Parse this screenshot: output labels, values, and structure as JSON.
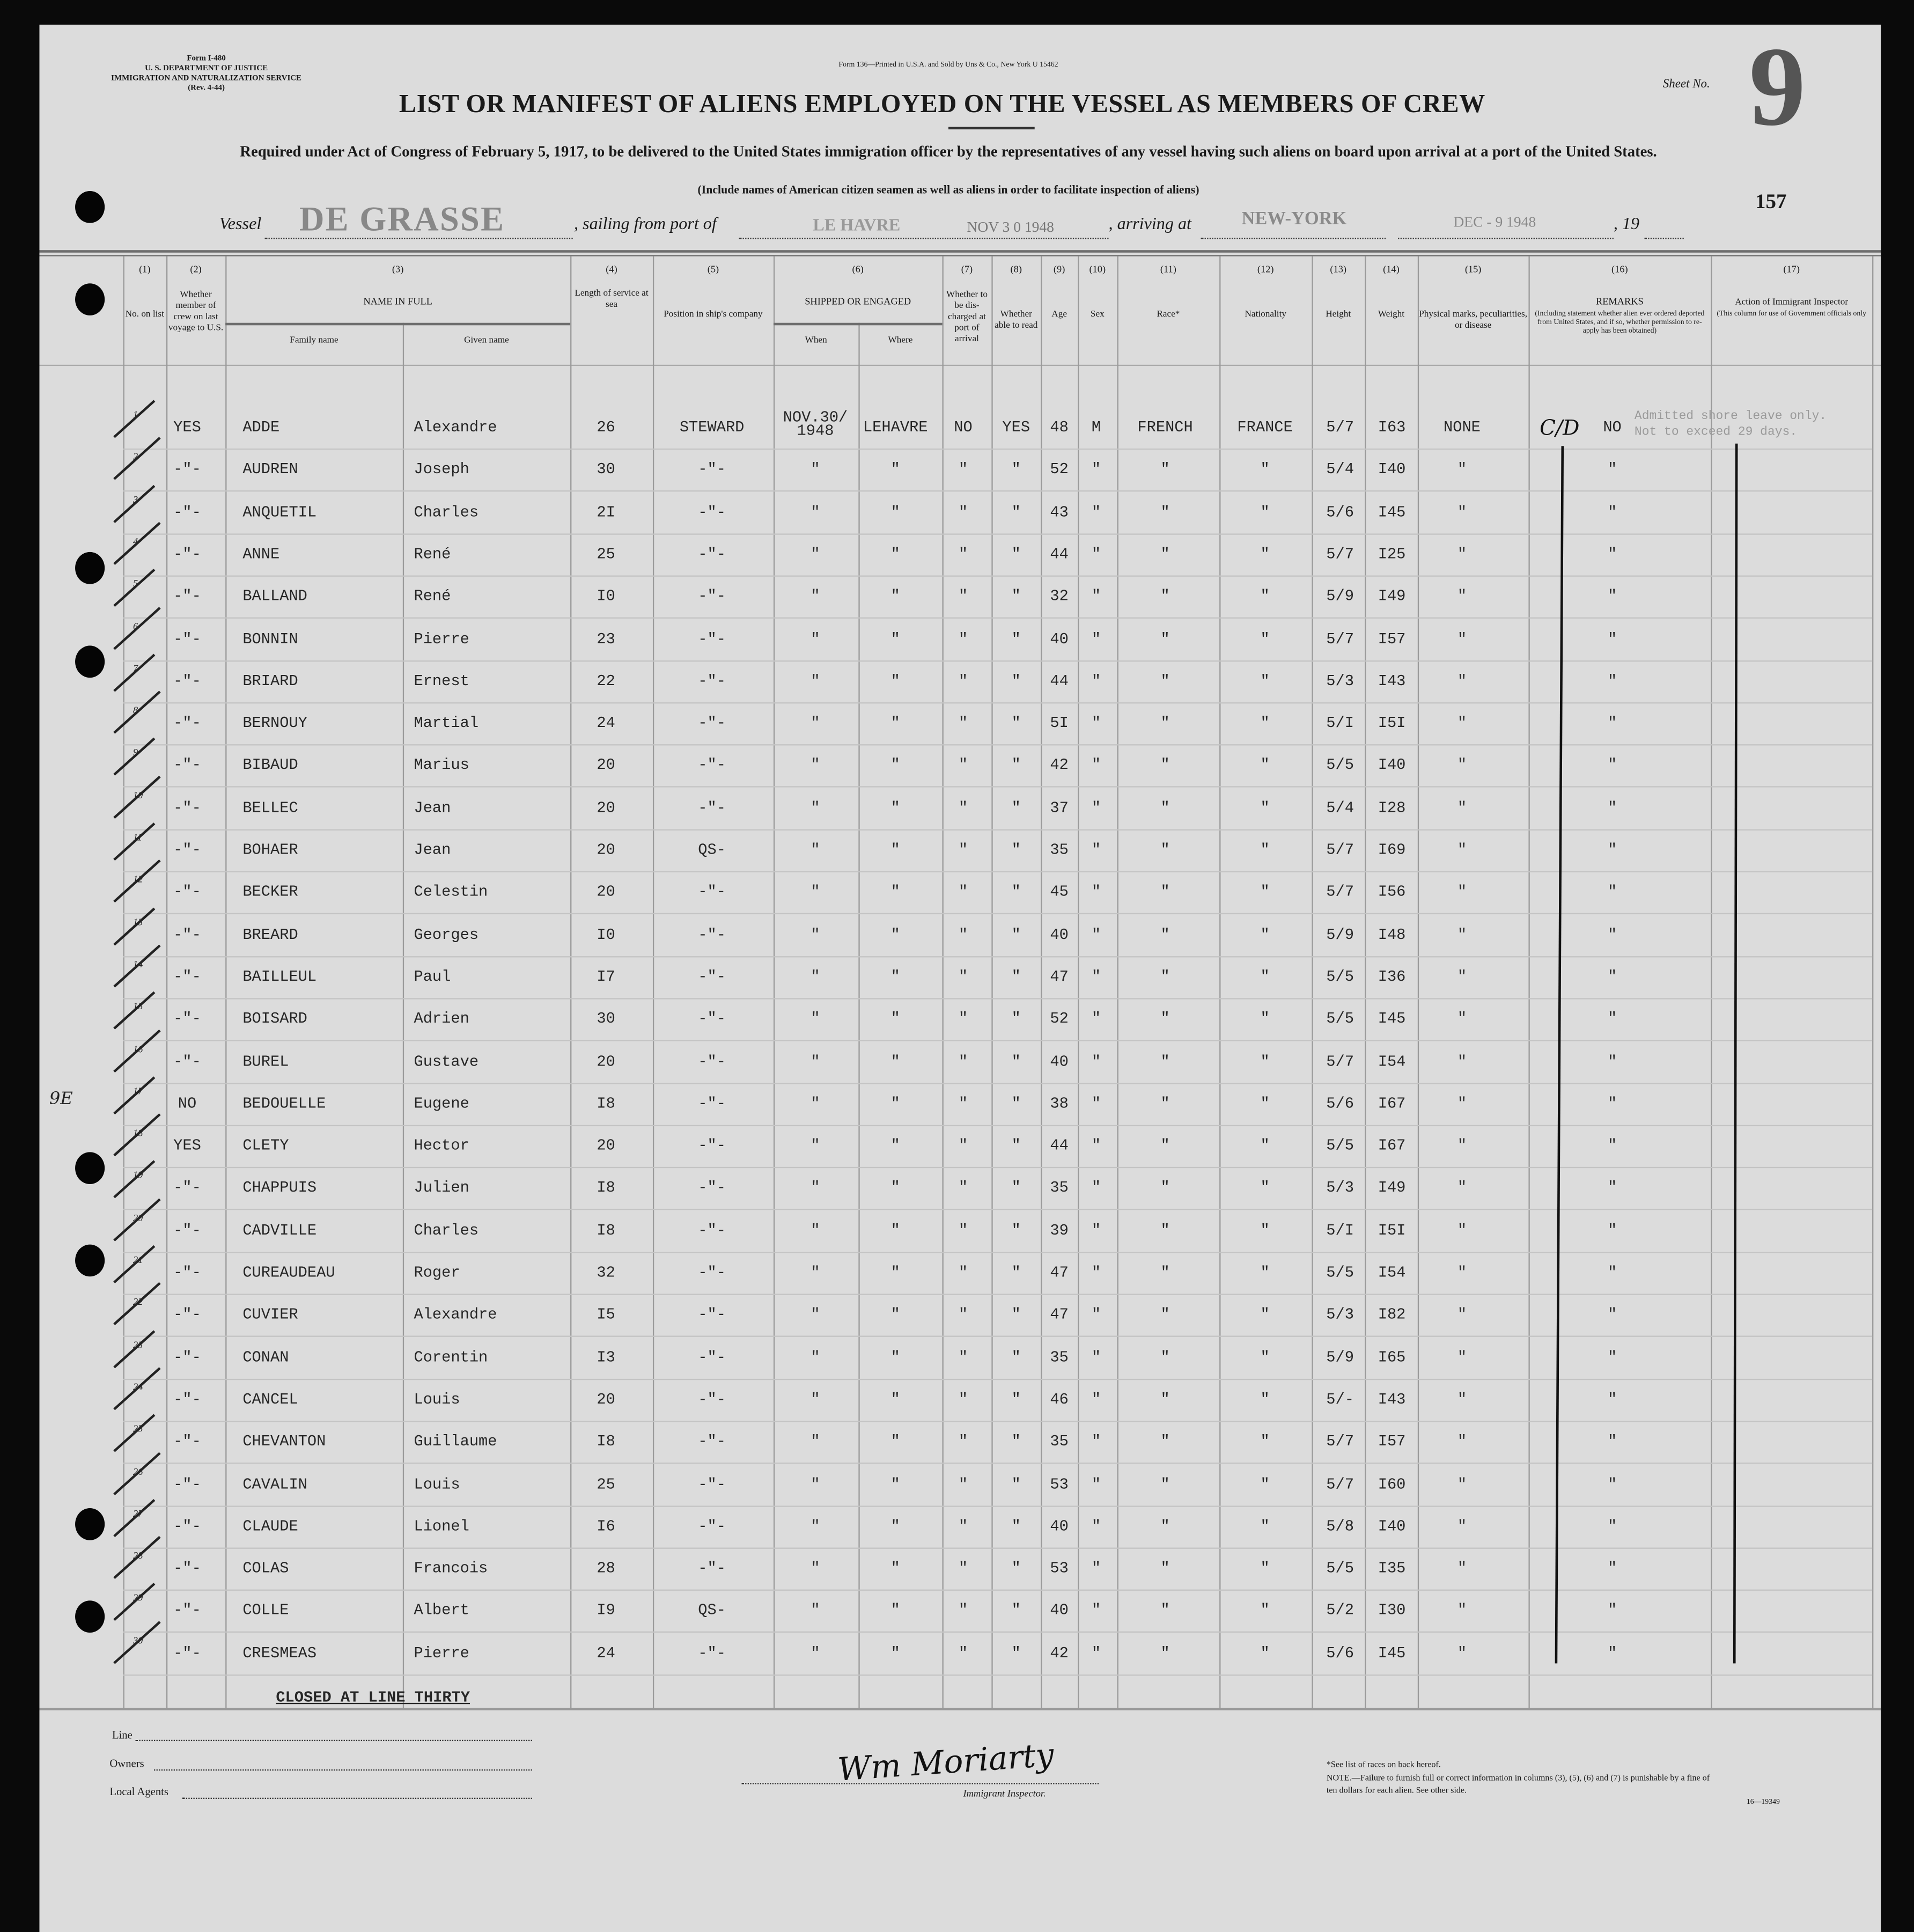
{
  "form": {
    "form_id": "Form I-480",
    "department": "U. S. DEPARTMENT OF JUSTICE",
    "service": "IMMIGRATION AND NATURALIZATION SERVICE",
    "revision": "(Rev. 4-44)",
    "printer": "Form 136—Printed in U.S.A. and Sold by Uns & Co., New York  U 15462",
    "title": "LIST OR MANIFEST OF ALIENS EMPLOYED ON THE VESSEL AS MEMBERS OF CREW",
    "subtitle": "Required under Act of Congress of February 5, 1917, to be delivered to the United States immigration officer by the representatives of any vessel having such aliens on board upon arrival at a port of the United States.",
    "note_include": "(Include names of American citizen seamen as well as aliens in order to facilitate inspection of aliens)",
    "sheet_label": "Sheet No.",
    "sheet_no": "9",
    "page_stamp": "157"
  },
  "voyage": {
    "vessel_label": "Vessel",
    "vessel": "DE GRASSE",
    "sailing_label": ", sailing from port of",
    "port": "LE HAVRE",
    "sail_date": "NOV 3 0 1948",
    "arriving_label": ", arriving at",
    "arrival_port": "NEW-YORK",
    "arrival_date": "DEC - 9 1948",
    "year_label": ", 19"
  },
  "headers": [
    {
      "num": "(1)",
      "label": "No. on list"
    },
    {
      "num": "(2)",
      "label": "Whether member of crew on last voyage to U.S."
    },
    {
      "num": "(3)",
      "label": "NAME IN FULL",
      "sub": [
        "Family name",
        "Given name"
      ]
    },
    {
      "num": "(4)",
      "label": "Length of service at sea"
    },
    {
      "num": "(5)",
      "label": "Position in ship's company"
    },
    {
      "num": "(6)",
      "label": "SHIPPED OR ENGAGED",
      "sub": [
        "When",
        "Where"
      ]
    },
    {
      "num": "(7)",
      "label": "Whether to be dis-charged at port of arrival"
    },
    {
      "num": "(8)",
      "label": "Whether able to read"
    },
    {
      "num": "(9)",
      "label": "Age"
    },
    {
      "num": "(10)",
      "label": "Sex"
    },
    {
      "num": "(11)",
      "label": "Race*"
    },
    {
      "num": "(12)",
      "label": "Nationality"
    },
    {
      "num": "(13)",
      "label": "Height"
    },
    {
      "num": "(14)",
      "label": "Weight"
    },
    {
      "num": "(15)",
      "label": "Physical marks, peculiarities, or disease"
    },
    {
      "num": "(16)",
      "label": "REMARKS",
      "note": "(Including statement whether alien ever ordered deported from United States, and if so, whether permission to re-apply has been obtained)"
    },
    {
      "num": "(17)",
      "label": "Action of Immigrant Inspector",
      "note": "(This column for use of Government officials only"
    }
  ],
  "rows": [
    [
      "1",
      "YES",
      "ADDE",
      "Alexandre",
      "26",
      "STEWARD",
      "NOV.30/ 1948",
      "LEHAVRE",
      "NO",
      "YES",
      "48",
      "M",
      "FRENCH",
      "FRANCE",
      "5/7",
      "I63",
      "NONE",
      "NO"
    ],
    [
      "2",
      "-\"-",
      "AUDREN",
      "Joseph",
      "30",
      "-\"-",
      "\"",
      "\"",
      "\"",
      "\"",
      "52",
      "\"",
      "\"",
      "\"",
      "5/4",
      "I40",
      "\"",
      "\""
    ],
    [
      "3",
      "-\"-",
      "ANQUETIL",
      "Charles",
      "2I",
      "-\"-",
      "\"",
      "\"",
      "\"",
      "\"",
      "43",
      "\"",
      "\"",
      "\"",
      "5/6",
      "I45",
      "\"",
      "\""
    ],
    [
      "4",
      "-\"-",
      "ANNE",
      "René",
      "25",
      "-\"-",
      "\"",
      "\"",
      "\"",
      "\"",
      "44",
      "\"",
      "\"",
      "\"",
      "5/7",
      "I25",
      "\"",
      "\""
    ],
    [
      "5",
      "-\"-",
      "BALLAND",
      "René",
      "I0",
      "-\"-",
      "\"",
      "\"",
      "\"",
      "\"",
      "32",
      "\"",
      "\"",
      "\"",
      "5/9",
      "I49",
      "\"",
      "\""
    ],
    [
      "6",
      "-\"-",
      "BONNIN",
      "Pierre",
      "23",
      "-\"-",
      "\"",
      "\"",
      "\"",
      "\"",
      "40",
      "\"",
      "\"",
      "\"",
      "5/7",
      "I57",
      "\"",
      "\""
    ],
    [
      "7",
      "-\"-",
      "BRIARD",
      "Ernest",
      "22",
      "-\"-",
      "\"",
      "\"",
      "\"",
      "\"",
      "44",
      "\"",
      "\"",
      "\"",
      "5/3",
      "I43",
      "\"",
      "\""
    ],
    [
      "8",
      "-\"-",
      "BERNOUY",
      "Martial",
      "24",
      "-\"-",
      "\"",
      "\"",
      "\"",
      "\"",
      "5I",
      "\"",
      "\"",
      "\"",
      "5/I",
      "I5I",
      "\"",
      "\""
    ],
    [
      "9",
      "-\"-",
      "BIBAUD",
      "Marius",
      "20",
      "-\"-",
      "\"",
      "\"",
      "\"",
      "\"",
      "42",
      "\"",
      "\"",
      "\"",
      "5/5",
      "I40",
      "\"",
      "\""
    ],
    [
      "10",
      "-\"-",
      "BELLEC",
      "Jean",
      "20",
      "-\"-",
      "\"",
      "\"",
      "\"",
      "\"",
      "37",
      "\"",
      "\"",
      "\"",
      "5/4",
      "I28",
      "\"",
      "\""
    ],
    [
      "11",
      "-\"-",
      "BOHAER",
      "Jean",
      "20",
      "QS-",
      "\"",
      "\"",
      "\"",
      "\"",
      "35",
      "\"",
      "\"",
      "\"",
      "5/7",
      "I69",
      "\"",
      "\""
    ],
    [
      "12",
      "-\"-",
      "BECKER",
      "Celestin",
      "20",
      "-\"-",
      "\"",
      "\"",
      "\"",
      "\"",
      "45",
      "\"",
      "\"",
      "\"",
      "5/7",
      "I56",
      "\"",
      "\""
    ],
    [
      "13",
      "-\"-",
      "BREARD",
      "Georges",
      "I0",
      "-\"-",
      "\"",
      "\"",
      "\"",
      "\"",
      "40",
      "\"",
      "\"",
      "\"",
      "5/9",
      "I48",
      "\"",
      "\""
    ],
    [
      "14",
      "-\"-",
      "BAILLEUL",
      "Paul",
      "I7",
      "-\"-",
      "\"",
      "\"",
      "\"",
      "\"",
      "47",
      "\"",
      "\"",
      "\"",
      "5/5",
      "I36",
      "\"",
      "\""
    ],
    [
      "15",
      "-\"-",
      "BOISARD",
      "Adrien",
      "30",
      "-\"-",
      "\"",
      "\"",
      "\"",
      "\"",
      "52",
      "\"",
      "\"",
      "\"",
      "5/5",
      "I45",
      "\"",
      "\""
    ],
    [
      "16",
      "-\"-",
      "BUREL",
      "Gustave",
      "20",
      "-\"-",
      "\"",
      "\"",
      "\"",
      "\"",
      "40",
      "\"",
      "\"",
      "\"",
      "5/7",
      "I54",
      "\"",
      "\""
    ],
    [
      "17",
      "NO",
      "BEDOUELLE",
      "Eugene",
      "I8",
      "-\"-",
      "\"",
      "\"",
      "\"",
      "\"",
      "38",
      "\"",
      "\"",
      "\"",
      "5/6",
      "I67",
      "\"",
      "\""
    ],
    [
      "18",
      "YES",
      "CLETY",
      "Hector",
      "20",
      "-\"-",
      "\"",
      "\"",
      "\"",
      "\"",
      "44",
      "\"",
      "\"",
      "\"",
      "5/5",
      "I67",
      "\"",
      "\""
    ],
    [
      "19",
      "-\"-",
      "CHAPPUIS",
      "Julien",
      "I8",
      "-\"-",
      "\"",
      "\"",
      "\"",
      "\"",
      "35",
      "\"",
      "\"",
      "\"",
      "5/3",
      "I49",
      "\"",
      "\""
    ],
    [
      "20",
      "-\"-",
      "CADVILLE",
      "Charles",
      "I8",
      "-\"-",
      "\"",
      "\"",
      "\"",
      "\"",
      "39",
      "\"",
      "\"",
      "\"",
      "5/I",
      "I5I",
      "\"",
      "\""
    ],
    [
      "21",
      "-\"-",
      "CUREAUDEAU",
      "Roger",
      "32",
      "-\"-",
      "\"",
      "\"",
      "\"",
      "\"",
      "47",
      "\"",
      "\"",
      "\"",
      "5/5",
      "I54",
      "\"",
      "\""
    ],
    [
      "22",
      "-\"-",
      "CUVIER",
      "Alexandre",
      "I5",
      "-\"-",
      "\"",
      "\"",
      "\"",
      "\"",
      "47",
      "\"",
      "\"",
      "\"",
      "5/3",
      "I82",
      "\"",
      "\""
    ],
    [
      "23",
      "-\"-",
      "CONAN",
      "Corentin",
      "I3",
      "-\"-",
      "\"",
      "\"",
      "\"",
      "\"",
      "35",
      "\"",
      "\"",
      "\"",
      "5/9",
      "I65",
      "\"",
      "\""
    ],
    [
      "24",
      "-\"-",
      "CANCEL",
      "Louis",
      "20",
      "-\"-",
      "\"",
      "\"",
      "\"",
      "\"",
      "46",
      "\"",
      "\"",
      "\"",
      "5/-",
      "I43",
      "\"",
      "\""
    ],
    [
      "25",
      "-\"-",
      "CHEVANTON",
      "Guillaume",
      "I8",
      "-\"-",
      "\"",
      "\"",
      "\"",
      "\"",
      "35",
      "\"",
      "\"",
      "\"",
      "5/7",
      "I57",
      "\"",
      "\""
    ],
    [
      "26",
      "-\"-",
      "CAVALIN",
      "Louis",
      "25",
      "-\"-",
      "\"",
      "\"",
      "\"",
      "\"",
      "53",
      "\"",
      "\"",
      "\"",
      "5/7",
      "I60",
      "\"",
      "\""
    ],
    [
      "27",
      "-\"-",
      "CLAUDE",
      "Lionel",
      "I6",
      "-\"-",
      "\"",
      "\"",
      "\"",
      "\"",
      "40",
      "\"",
      "\"",
      "\"",
      "5/8",
      "I40",
      "\"",
      "\""
    ],
    [
      "28",
      "-\"-",
      "COLAS",
      "Francois",
      "28",
      "-\"-",
      "\"",
      "\"",
      "\"",
      "\"",
      "53",
      "\"",
      "\"",
      "\"",
      "5/5",
      "I35",
      "\"",
      "\""
    ],
    [
      "29",
      "-\"-",
      "COLLE",
      "Albert",
      "I9",
      "QS-",
      "\"",
      "\"",
      "\"",
      "\"",
      "40",
      "\"",
      "\"",
      "\"",
      "5/2",
      "I30",
      "\"",
      "\""
    ],
    [
      "30",
      "-\"-",
      "CRESMEAS",
      "Pierre",
      "24",
      "-\"-",
      "\"",
      "\"",
      "\"",
      "\"",
      "42",
      "\"",
      "\"",
      "\"",
      "5/6",
      "I45",
      "\"",
      "\""
    ]
  ],
  "annotations": {
    "remarks_handwritten": "C/D",
    "action_note_1": "Admitted shore leave only.",
    "action_note_2": "Not to exceed 29 days.",
    "margin_mark": "9E",
    "closed": "CLOSED AT LINE THIRTY"
  },
  "footer": {
    "line_label": "Line",
    "owners_label": "Owners",
    "agents_label": "Local Agents",
    "signature": "Wm Moriarty",
    "inspector_label": "Immigrant Inspector.",
    "races_note": "*See list of races on back hereof.",
    "note": "NOTE.—Failure to furnish full or correct information in columns (3), (5), (6) and (7) is punishable by a fine of ten dollars for each alien. See other side.",
    "form_code": "16—19349"
  }
}
